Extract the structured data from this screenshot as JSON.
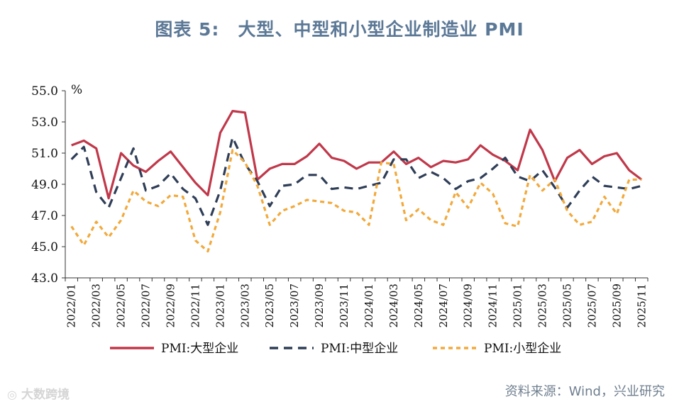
{
  "title": {
    "prefix": "图表 5:",
    "text": "大型、中型和小型企业制造业 PMI"
  },
  "source": "资料来源：Wind，兴业研究",
  "watermark": "大数跨境",
  "chart_data": {
    "type": "line",
    "unit_label": "%",
    "ylim": [
      43.0,
      55.0
    ],
    "yticks": [
      "43.0",
      "45.0",
      "47.0",
      "49.0",
      "51.0",
      "53.0",
      "55.0"
    ],
    "x": [
      "2022/01",
      "2022/02",
      "2022/03",
      "2022/04",
      "2022/05",
      "2022/06",
      "2022/07",
      "2022/08",
      "2022/09",
      "2022/10",
      "2022/11",
      "2022/12",
      "2023/01",
      "2023/02",
      "2023/03",
      "2023/04",
      "2023/05",
      "2023/06",
      "2023/07",
      "2023/08",
      "2023/09",
      "2023/10",
      "2023/11",
      "2023/12",
      "2024/01",
      "2024/02",
      "2024/03",
      "2024/04",
      "2024/05",
      "2024/06",
      "2024/07",
      "2024/08",
      "2024/09",
      "2024/10",
      "2024/11",
      "2024/12",
      "2025/01",
      "2025/02",
      "2025/03",
      "2025/04",
      "2025/05",
      "2025/06",
      "2025/07",
      "2025/08",
      "2025/09",
      "2025/10",
      "2025/11"
    ],
    "xtick_labels": [
      "2022/01",
      "2022/03",
      "2022/05",
      "2022/07",
      "2022/09",
      "2022/11",
      "2023/01",
      "2023/03",
      "2023/05",
      "2023/07",
      "2023/09",
      "2023/11",
      "2024/01",
      "2024/03",
      "2024/05",
      "2024/07",
      "2024/09",
      "2024/11",
      "2025/01",
      "2025/03",
      "2025/05",
      "2025/07",
      "2025/09",
      "2025/11"
    ],
    "series": [
      {
        "name": "PMI:大型企业",
        "color": "#c0384a",
        "style": "solid",
        "values": [
          51.5,
          51.8,
          51.3,
          48.1,
          51.0,
          50.2,
          49.8,
          50.5,
          51.1,
          50.1,
          49.1,
          48.3,
          52.3,
          53.7,
          53.6,
          49.3,
          50.0,
          50.3,
          50.3,
          50.8,
          51.6,
          50.7,
          50.5,
          50.0,
          50.4,
          50.4,
          51.1,
          50.3,
          50.7,
          50.1,
          50.5,
          50.4,
          50.6,
          51.5,
          50.9,
          50.5,
          49.9,
          52.5,
          51.2,
          49.2,
          50.7,
          51.2,
          50.3,
          50.8,
          51.0,
          49.9,
          49.3
        ]
      },
      {
        "name": "PMI:中型企业",
        "color": "#2f3e57",
        "style": "dash",
        "values": [
          50.6,
          51.4,
          48.5,
          47.5,
          49.4,
          51.3,
          48.6,
          48.9,
          49.7,
          48.7,
          48.1,
          46.4,
          48.6,
          52.0,
          50.3,
          49.2,
          47.6,
          48.9,
          49.0,
          49.6,
          49.6,
          48.7,
          48.8,
          48.7,
          48.9,
          49.1,
          50.6,
          50.6,
          49.4,
          49.8,
          49.4,
          48.7,
          49.2,
          49.4,
          50.0,
          50.7,
          49.5,
          49.2,
          49.9,
          48.8,
          47.5,
          48.6,
          49.5,
          48.9,
          48.8,
          48.7,
          48.9
        ]
      },
      {
        "name": "PMI:小型企业",
        "color": "#f2a93b",
        "style": "dot",
        "values": [
          46.3,
          45.1,
          46.6,
          45.6,
          46.7,
          48.6,
          47.9,
          47.6,
          48.3,
          48.2,
          45.4,
          44.7,
          47.2,
          51.2,
          50.4,
          48.9,
          46.4,
          47.3,
          47.6,
          48.0,
          47.9,
          47.8,
          47.3,
          47.2,
          46.4,
          50.4,
          50.3,
          46.7,
          47.4,
          46.7,
          46.4,
          48.5,
          47.5,
          49.1,
          48.4,
          46.5,
          46.3,
          49.6,
          48.6,
          49.3,
          47.3,
          46.4,
          46.6,
          48.2,
          47.1,
          49.3,
          49.3
        ]
      }
    ]
  }
}
